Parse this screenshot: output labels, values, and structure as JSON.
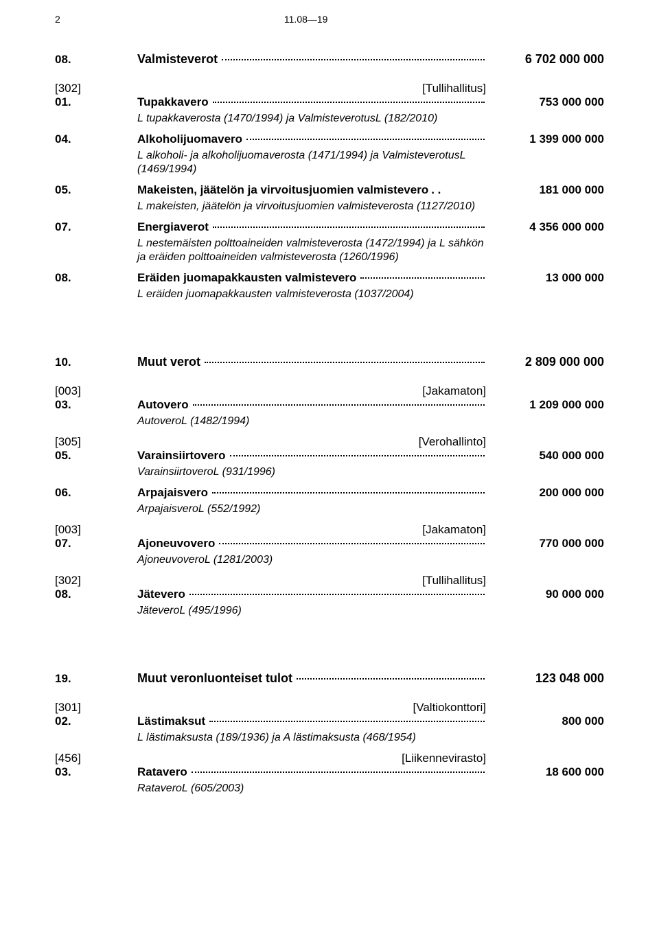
{
  "header": {
    "page_number": "2",
    "ref": "11.08—19"
  },
  "sections": [
    {
      "code": "08.",
      "title": "Valmisteverot",
      "amount": "6 702 000 000",
      "preBracket": {
        "code": "[302]",
        "note": "[Tullihallitus]"
      },
      "items": [
        {
          "code": "01.",
          "title": "Tupakkavero",
          "amount": "753 000 000",
          "ann": "L tupakkaverosta (1470/1994) ja ValmisteverotusL (182/2010)"
        },
        {
          "code": "04.",
          "title": "Alkoholijuomavero",
          "amount": "1 399 000 000",
          "ann": "L alkoholi- ja alkoholijuomaverosta (1471/1994) ja ValmisteverotusL (1469/1994)"
        },
        {
          "code": "05.",
          "title": "Makeisten, jäätelön ja virvoitusjuomien valmistevero",
          "titleTail": ". .",
          "amount": "181 000 000",
          "ann": "L makeisten, jäätelön ja virvoitusjuomien valmisteverosta (1127/2010)"
        },
        {
          "code": "07.",
          "title": "Energiaverot",
          "amount": "4 356 000 000",
          "ann": "L nestemäisten polttoaineiden valmisteverosta (1472/1994) ja L sähkön ja eräiden polttoaineiden valmisteverosta (1260/1996)"
        },
        {
          "code": "08.",
          "title": "Eräiden juomapakkausten valmistevero",
          "amount": "13 000 000",
          "ann": "L eräiden juomapakkausten valmisteverosta (1037/2004)"
        }
      ]
    },
    {
      "code": "10.",
      "title": "Muut verot",
      "amount": "2 809 000 000",
      "items": [
        {
          "bracket": {
            "code": "[003]",
            "note": "[Jakamaton]"
          },
          "code": "03.",
          "title": "Autovero",
          "amount": "1 209 000 000",
          "ann": "AutoveroL (1482/1994)"
        },
        {
          "bracket": {
            "code": "[305]",
            "note": "[Verohallinto]"
          },
          "code": "05.",
          "title": "Varainsiirtovero",
          "amount": "540 000 000",
          "ann": "VarainsiirtoveroL (931/1996)"
        },
        {
          "code": "06.",
          "title": "Arpajaisvero",
          "amount": "200 000 000",
          "ann": "ArpajaisveroL (552/1992)"
        },
        {
          "bracket": {
            "code": "[003]",
            "note": "[Jakamaton]"
          },
          "code": "07.",
          "title": "Ajoneuvovero",
          "amount": "770 000 000",
          "ann": "AjoneuvoveroL (1281/2003)"
        },
        {
          "bracket": {
            "code": "[302]",
            "note": "[Tullihallitus]"
          },
          "code": "08.",
          "title": "Jätevero",
          "amount": "90 000 000",
          "ann": "JäteveroL (495/1996)"
        }
      ]
    },
    {
      "code": "19.",
      "title": "Muut veronluonteiset tulot",
      "amount": "123 048 000",
      "items": [
        {
          "bracket": {
            "code": "[301]",
            "note": "[Valtiokonttori]"
          },
          "code": "02.",
          "title": "Lästimaksut",
          "amount": "800 000",
          "ann": "L lästimaksusta (189/1936) ja A lästimaksusta (468/1954)"
        },
        {
          "bracket": {
            "code": "[456]",
            "note": "[Liikennevirasto]"
          },
          "code": "03.",
          "title": "Ratavero",
          "amount": "18 600 000",
          "ann": "RataveroL (605/2003)"
        }
      ]
    }
  ]
}
